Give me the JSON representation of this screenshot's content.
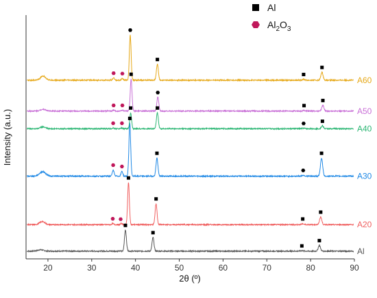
{
  "chart_data": {
    "type": "line",
    "xlabel": "2θ (º)",
    "ylabel": "Intensity (a.u.)",
    "xlim": [
      15,
      90
    ],
    "x_ticks": [
      20,
      30,
      40,
      50,
      60,
      70,
      80,
      90
    ],
    "legend": {
      "placement": "top-right",
      "entries": [
        {
          "marker": "square",
          "text": "Al",
          "sub": ""
        },
        {
          "marker": "hexagon",
          "text": "Al",
          "sub": "2",
          "text2": "O",
          "sub2": "3",
          "color": "#c0185b"
        }
      ]
    },
    "series": [
      {
        "name": "Al",
        "color": "#555555",
        "baseline": 0.0,
        "peaks": [
          [
            18.3,
            0.06,
            0.7
          ],
          [
            37.7,
            0.95,
            0.22
          ],
          [
            44.0,
            0.62,
            0.22
          ],
          [
            78.0,
            0.02,
            0.3
          ],
          [
            82.0,
            0.26,
            0.25
          ]
        ],
        "markers": [
          [
            37.7,
            "square"
          ],
          [
            44.0,
            "square"
          ],
          [
            78.0,
            "square"
          ],
          [
            82.0,
            "square"
          ]
        ]
      },
      {
        "name": "A20",
        "color": "#f06060",
        "baseline": 1.2,
        "peaks": [
          [
            18.7,
            0.14,
            0.6
          ],
          [
            34.8,
            0.05,
            0.2
          ],
          [
            36.8,
            0.05,
            0.2
          ],
          [
            38.4,
            1.9,
            0.2
          ],
          [
            44.7,
            0.95,
            0.22
          ],
          [
            78.2,
            0.04,
            0.3
          ],
          [
            82.3,
            0.35,
            0.25
          ]
        ],
        "markers": [
          [
            34.8,
            "hexagon"
          ],
          [
            36.6,
            "hexagon"
          ],
          [
            38.4,
            "square"
          ],
          [
            44.7,
            "square"
          ],
          [
            78.2,
            "square"
          ],
          [
            82.3,
            "square"
          ]
        ]
      },
      {
        "name": "A30",
        "color": "#1e88e5",
        "baseline": 3.4,
        "peaks": [
          [
            18.8,
            0.2,
            0.7
          ],
          [
            34.9,
            0.28,
            0.2
          ],
          [
            36.9,
            0.22,
            0.2
          ],
          [
            38.7,
            2.4,
            0.2
          ],
          [
            44.9,
            0.82,
            0.22
          ],
          [
            78.3,
            0.04,
            0.3
          ],
          [
            82.5,
            0.82,
            0.25
          ]
        ],
        "markers": [
          [
            34.9,
            "hexagon"
          ],
          [
            36.9,
            "hexagon"
          ],
          [
            38.7,
            "square"
          ],
          [
            44.9,
            "square"
          ],
          [
            78.3,
            "hexagon"
          ],
          [
            82.5,
            "square"
          ]
        ]
      },
      {
        "name": "A40",
        "color": "#2bb673",
        "baseline": 5.55,
        "peaks": [
          [
            18.8,
            0.08,
            0.6
          ],
          [
            34.9,
            0.03,
            0.2
          ],
          [
            36.9,
            0.03,
            0.2
          ],
          [
            38.9,
            0.72,
            0.2
          ],
          [
            45.0,
            0.72,
            0.22
          ],
          [
            78.4,
            0.02,
            0.3
          ],
          [
            82.7,
            0.12,
            0.25
          ]
        ],
        "markers": [
          [
            34.9,
            "hexagon"
          ],
          [
            36.9,
            "hexagon"
          ],
          [
            38.9,
            "square"
          ],
          [
            45.0,
            "square"
          ],
          [
            78.4,
            "hexagon"
          ],
          [
            82.7,
            "square"
          ]
        ]
      },
      {
        "name": "A50",
        "color": "#c86ed6",
        "baseline": 6.35,
        "peaks": [
          [
            18.9,
            0.08,
            0.6
          ],
          [
            35.0,
            0.04,
            0.2
          ],
          [
            37.0,
            0.04,
            0.2
          ],
          [
            39.0,
            1.45,
            0.2
          ],
          [
            45.1,
            0.62,
            0.22
          ],
          [
            78.5,
            0.03,
            0.3
          ],
          [
            82.8,
            0.26,
            0.25
          ]
        ],
        "markers": [
          [
            35.0,
            "hexagon"
          ],
          [
            37.0,
            "hexagon"
          ],
          [
            39.0,
            "square"
          ],
          [
            45.1,
            "hexagon"
          ],
          [
            78.5,
            "square"
          ],
          [
            82.8,
            "square"
          ]
        ]
      },
      {
        "name": "A60",
        "color": "#e6a817",
        "baseline": 7.75,
        "peaks": [
          [
            18.9,
            0.18,
            0.6
          ],
          [
            35.0,
            0.1,
            0.2
          ],
          [
            37.0,
            0.08,
            0.2
          ],
          [
            38.8,
            2.05,
            0.2
          ],
          [
            45.0,
            0.72,
            0.22
          ],
          [
            78.4,
            0.04,
            0.3
          ],
          [
            82.6,
            0.36,
            0.25
          ]
        ],
        "markers": [
          [
            35.0,
            "hexagon"
          ],
          [
            37.0,
            "hexagon"
          ],
          [
            38.8,
            "hexagon"
          ],
          [
            45.0,
            "square"
          ],
          [
            78.4,
            "square"
          ],
          [
            82.6,
            "square"
          ]
        ]
      }
    ]
  }
}
